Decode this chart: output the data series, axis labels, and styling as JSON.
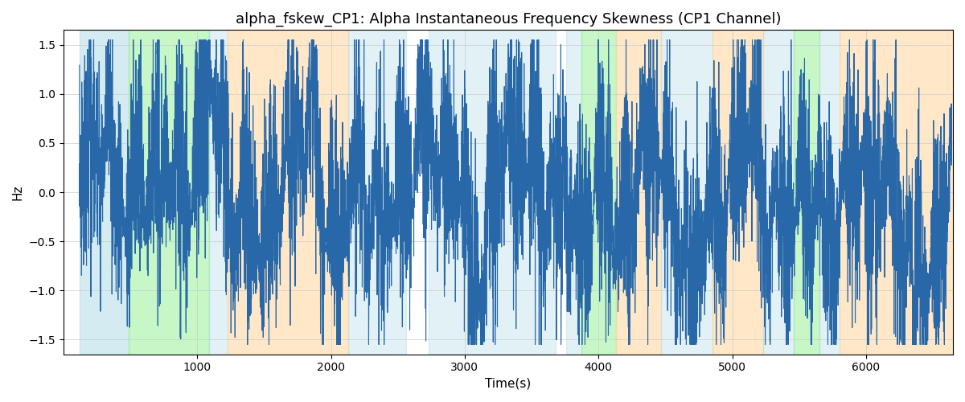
{
  "title": "alpha_fskew_CP1: Alpha Instantaneous Frequency Skewness (CP1 Channel)",
  "xlabel": "Time(s)",
  "ylabel": "Hz",
  "ylim": [
    -1.65,
    1.65
  ],
  "xlim": [
    0,
    6650
  ],
  "yticks": [
    -1.5,
    -1.0,
    -0.5,
    0.0,
    0.5,
    1.0,
    1.5
  ],
  "xticks": [
    1000,
    2000,
    3000,
    4000,
    5000,
    6000
  ],
  "line_color": "#2868a8",
  "line_width": 0.8,
  "bg_color": "#ffffff",
  "grid_color": "#cccccc",
  "background_bands": [
    {
      "xmin": 120,
      "xmax": 490,
      "color": "#add8e6",
      "alpha": 0.5
    },
    {
      "xmin": 490,
      "xmax": 1090,
      "color": "#90ee90",
      "alpha": 0.5
    },
    {
      "xmin": 1090,
      "xmax": 1230,
      "color": "#add8e6",
      "alpha": 0.35
    },
    {
      "xmin": 1230,
      "xmax": 2130,
      "color": "#ffd59a",
      "alpha": 0.55
    },
    {
      "xmin": 2130,
      "xmax": 2560,
      "color": "#add8e6",
      "alpha": 0.35
    },
    {
      "xmin": 2560,
      "xmax": 2730,
      "color": "#ffffff",
      "alpha": 0.0
    },
    {
      "xmin": 2730,
      "xmax": 3680,
      "color": "#add8e6",
      "alpha": 0.35
    },
    {
      "xmin": 3680,
      "xmax": 3760,
      "color": "#ffffff",
      "alpha": 0.0
    },
    {
      "xmin": 3760,
      "xmax": 3870,
      "color": "#add8e6",
      "alpha": 0.35
    },
    {
      "xmin": 3870,
      "xmax": 4130,
      "color": "#90ee90",
      "alpha": 0.5
    },
    {
      "xmin": 4130,
      "xmax": 4470,
      "color": "#ffd59a",
      "alpha": 0.55
    },
    {
      "xmin": 4470,
      "xmax": 4850,
      "color": "#add8e6",
      "alpha": 0.35
    },
    {
      "xmin": 4850,
      "xmax": 5230,
      "color": "#ffd59a",
      "alpha": 0.55
    },
    {
      "xmin": 5230,
      "xmax": 5460,
      "color": "#add8e6",
      "alpha": 0.35
    },
    {
      "xmin": 5460,
      "xmax": 5650,
      "color": "#90ee90",
      "alpha": 0.5
    },
    {
      "xmin": 5650,
      "xmax": 5800,
      "color": "#add8e6",
      "alpha": 0.35
    },
    {
      "xmin": 5800,
      "xmax": 6650,
      "color": "#ffd59a",
      "alpha": 0.55
    }
  ],
  "seed": 7,
  "n_points": 6500
}
